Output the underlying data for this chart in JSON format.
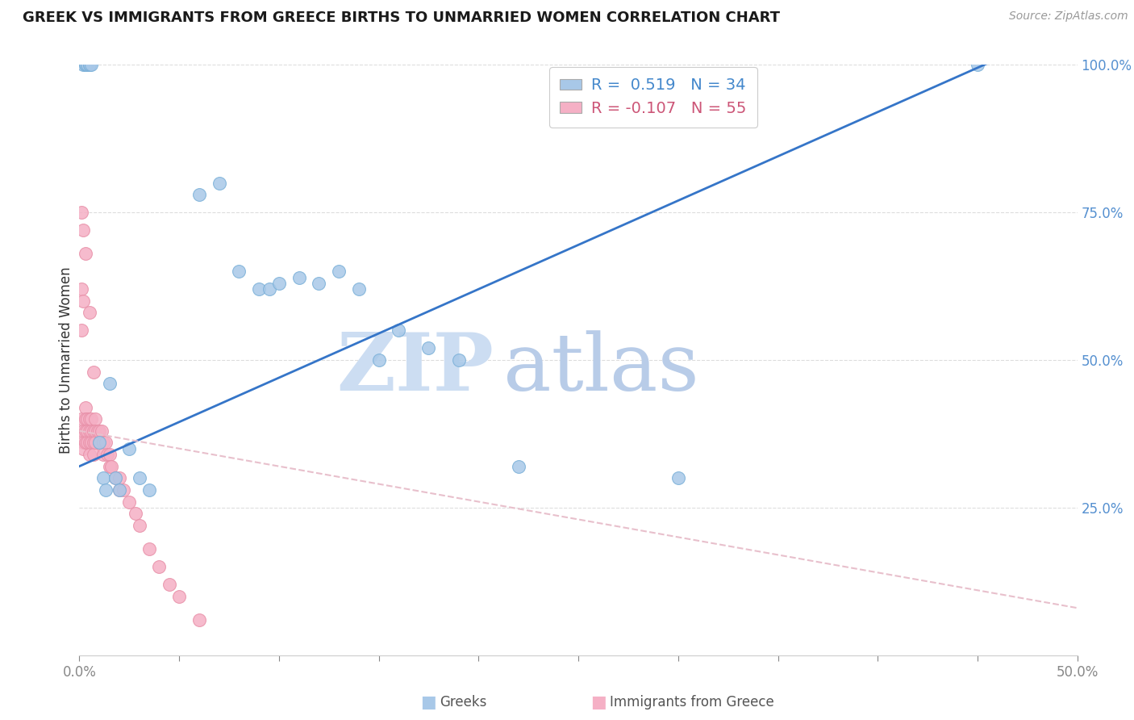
{
  "title": "GREEK VS IMMIGRANTS FROM GREECE BIRTHS TO UNMARRIED WOMEN CORRELATION CHART",
  "source": "Source: ZipAtlas.com",
  "ylabel": "Births to Unmarried Women",
  "legend_label_blue": "Greeks",
  "legend_label_pink": "Immigrants from Greece",
  "r_blue": 0.519,
  "n_blue": 34,
  "r_pink": -0.107,
  "n_pink": 55,
  "xlim": [
    0.0,
    0.5
  ],
  "ylim": [
    0.0,
    1.0
  ],
  "blue_x": [
    0.002,
    0.003,
    0.003,
    0.004,
    0.004,
    0.005,
    0.005,
    0.006,
    0.01,
    0.012,
    0.013,
    0.015,
    0.018,
    0.02,
    0.025,
    0.03,
    0.035,
    0.06,
    0.07,
    0.08,
    0.09,
    0.095,
    0.1,
    0.11,
    0.12,
    0.13,
    0.14,
    0.15,
    0.16,
    0.175,
    0.19,
    0.22,
    0.3,
    0.45
  ],
  "blue_y": [
    1.0,
    1.0,
    1.0,
    1.0,
    1.0,
    1.0,
    1.0,
    1.0,
    0.36,
    0.3,
    0.28,
    0.46,
    0.3,
    0.28,
    0.35,
    0.3,
    0.28,
    0.78,
    0.8,
    0.65,
    0.62,
    0.62,
    0.63,
    0.64,
    0.63,
    0.65,
    0.62,
    0.5,
    0.55,
    0.52,
    0.5,
    0.32,
    0.3,
    1.0
  ],
  "pink_x": [
    0.001,
    0.001,
    0.001,
    0.002,
    0.002,
    0.002,
    0.002,
    0.003,
    0.003,
    0.003,
    0.003,
    0.004,
    0.004,
    0.004,
    0.005,
    0.005,
    0.005,
    0.005,
    0.006,
    0.006,
    0.006,
    0.007,
    0.007,
    0.007,
    0.008,
    0.008,
    0.008,
    0.009,
    0.01,
    0.01,
    0.011,
    0.012,
    0.012,
    0.013,
    0.014,
    0.015,
    0.015,
    0.016,
    0.018,
    0.02,
    0.02,
    0.022,
    0.025,
    0.028,
    0.03,
    0.035,
    0.04,
    0.045,
    0.05,
    0.06,
    0.001,
    0.002,
    0.003,
    0.005,
    0.007
  ],
  "pink_y": [
    0.62,
    0.55,
    0.4,
    0.6,
    0.38,
    0.36,
    0.35,
    0.42,
    0.4,
    0.38,
    0.36,
    0.4,
    0.38,
    0.36,
    0.4,
    0.38,
    0.36,
    0.34,
    0.4,
    0.38,
    0.36,
    0.38,
    0.36,
    0.34,
    0.4,
    0.38,
    0.36,
    0.38,
    0.38,
    0.36,
    0.38,
    0.36,
    0.34,
    0.36,
    0.34,
    0.34,
    0.32,
    0.32,
    0.3,
    0.3,
    0.28,
    0.28,
    0.26,
    0.24,
    0.22,
    0.18,
    0.15,
    0.12,
    0.1,
    0.06,
    0.75,
    0.72,
    0.68,
    0.58,
    0.48
  ],
  "blue_color": "#a8c8e8",
  "blue_edge_color": "#7ab0d8",
  "pink_color": "#f5b0c5",
  "pink_edge_color": "#e890a8",
  "blue_line_color": "#3575c8",
  "pink_line_color": "#e8c0cc",
  "background_color": "#ffffff",
  "grid_color": "#dddddd",
  "watermark_zip_color": "#c8ddf0",
  "watermark_atlas_color": "#b5cce5"
}
